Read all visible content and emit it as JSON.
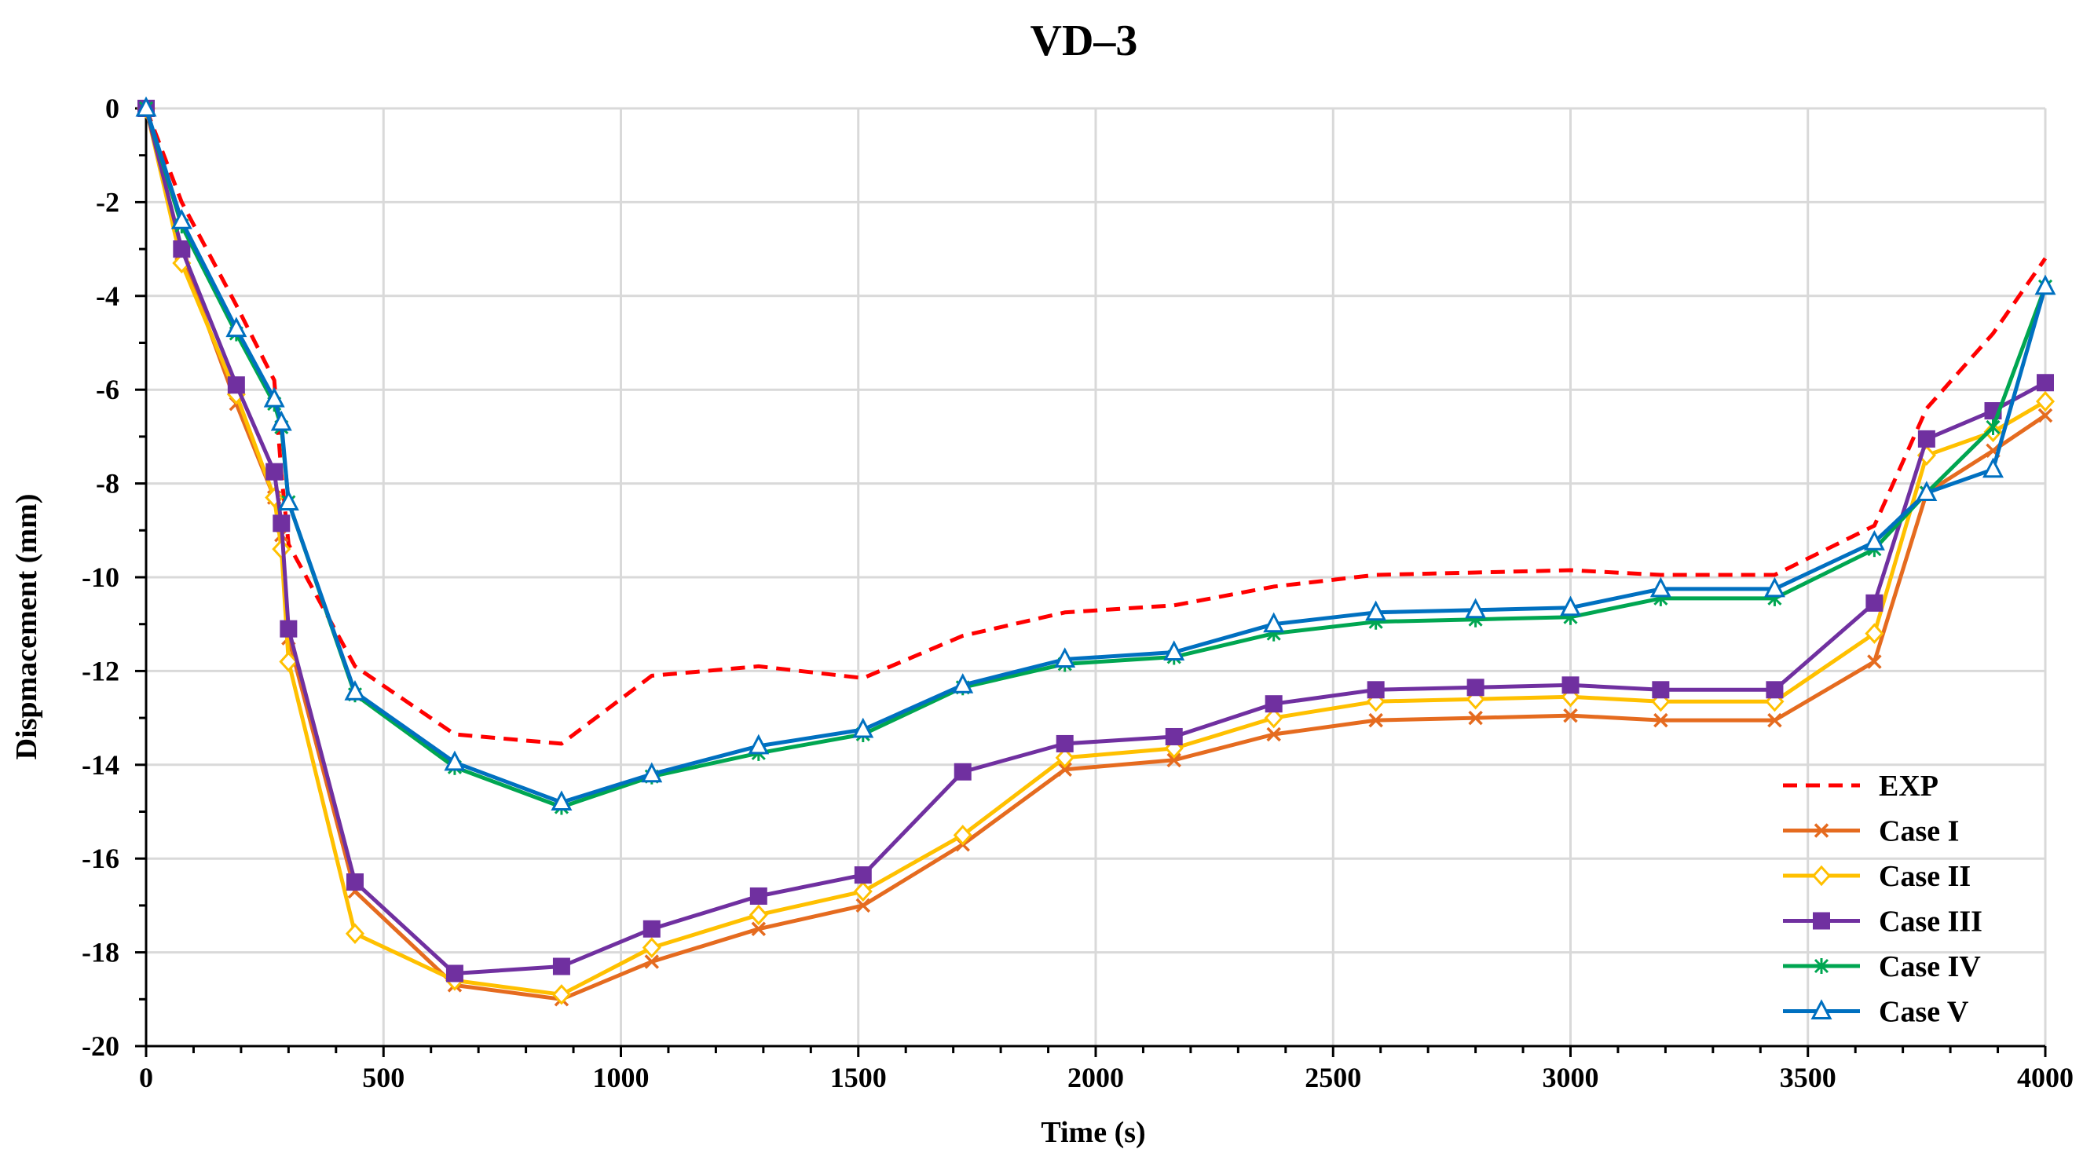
{
  "chart_data": {
    "type": "line",
    "title": "VD–3",
    "xlabel": "Time (s)",
    "ylabel": "Dispmacement (mm)",
    "xlim": [
      0,
      4000
    ],
    "ylim": [
      -20,
      0
    ],
    "xticks": [
      0,
      500,
      1000,
      1500,
      2000,
      2500,
      3000,
      3500,
      4000
    ],
    "yticks": [
      0,
      -2,
      -4,
      -6,
      -8,
      -10,
      -12,
      -14,
      -16,
      -18,
      -20
    ],
    "grid": true,
    "legend_position": "bottom-right",
    "series": [
      {
        "name": "EXP",
        "color": "#ff0000",
        "style": "dashed",
        "marker": "none",
        "x": [
          0,
          75,
          190,
          270,
          285,
          300,
          440,
          650,
          875,
          1065,
          1290,
          1510,
          1720,
          1935,
          2165,
          2375,
          2590,
          2800,
          3000,
          3190,
          3430,
          3640,
          3750,
          3890,
          4000
        ],
        "y": [
          0,
          -2.0,
          -4.2,
          -5.8,
          -7.8,
          -9.3,
          -11.9,
          -13.35,
          -13.55,
          -12.1,
          -11.9,
          -12.15,
          -11.25,
          -10.75,
          -10.6,
          -10.2,
          -9.95,
          -9.9,
          -9.85,
          -9.95,
          -9.95,
          -8.9,
          -6.4,
          -4.8,
          -3.2
        ]
      },
      {
        "name": "Case I",
        "color": "#e56b1f",
        "style": "solid",
        "marker": "x",
        "x": [
          0,
          75,
          190,
          270,
          285,
          300,
          440,
          650,
          875,
          1065,
          1290,
          1510,
          1720,
          1935,
          2165,
          2375,
          2590,
          2800,
          3000,
          3190,
          3430,
          3640,
          3750,
          3890,
          4000
        ],
        "y": [
          0,
          -3.1,
          -6.3,
          -8.3,
          -9.1,
          -11.3,
          -16.7,
          -18.7,
          -19.0,
          -18.2,
          -17.5,
          -17.0,
          -15.7,
          -14.1,
          -13.9,
          -13.35,
          -13.05,
          -13.0,
          -12.95,
          -13.05,
          -13.05,
          -11.8,
          -8.2,
          -7.3,
          -6.55
        ]
      },
      {
        "name": "Case II",
        "color": "#ffc000",
        "style": "solid",
        "marker": "diamond-open",
        "x": [
          0,
          75,
          190,
          270,
          285,
          300,
          440,
          650,
          875,
          1065,
          1290,
          1510,
          1720,
          1935,
          2165,
          2375,
          2590,
          2800,
          3000,
          3190,
          3430,
          3640,
          3750,
          3890,
          4000
        ],
        "y": [
          0,
          -3.3,
          -6.1,
          -8.3,
          -9.4,
          -11.8,
          -17.6,
          -18.6,
          -18.9,
          -17.9,
          -17.2,
          -16.7,
          -15.5,
          -13.85,
          -13.65,
          -13.0,
          -12.65,
          -12.6,
          -12.55,
          -12.65,
          -12.65,
          -11.2,
          -7.4,
          -6.9,
          -6.25
        ]
      },
      {
        "name": "Case III",
        "color": "#7030a0",
        "style": "solid",
        "marker": "square",
        "x": [
          0,
          75,
          190,
          270,
          285,
          300,
          440,
          650,
          875,
          1065,
          1290,
          1510,
          1720,
          1935,
          2165,
          2375,
          2590,
          2800,
          3000,
          3190,
          3430,
          3640,
          3750,
          3890,
          4000
        ],
        "y": [
          0,
          -3.0,
          -5.9,
          -7.75,
          -8.85,
          -11.1,
          -16.5,
          -18.45,
          -18.3,
          -17.5,
          -16.8,
          -16.35,
          -14.15,
          -13.55,
          -13.4,
          -12.7,
          -12.4,
          -12.35,
          -12.3,
          -12.4,
          -12.4,
          -10.55,
          -7.05,
          -6.45,
          -5.85
        ]
      },
      {
        "name": "Case IV",
        "color": "#00a651",
        "style": "solid",
        "marker": "asterisk",
        "x": [
          0,
          75,
          190,
          270,
          285,
          300,
          440,
          650,
          875,
          1065,
          1290,
          1510,
          1720,
          1935,
          2165,
          2375,
          2590,
          2800,
          3000,
          3190,
          3430,
          3640,
          3750,
          3890,
          4000
        ],
        "y": [
          0,
          -2.5,
          -4.8,
          -6.3,
          -6.8,
          -8.4,
          -12.5,
          -14.05,
          -14.9,
          -14.25,
          -13.75,
          -13.35,
          -12.35,
          -11.85,
          -11.7,
          -11.2,
          -10.95,
          -10.9,
          -10.85,
          -10.45,
          -10.45,
          -9.4,
          -8.2,
          -6.8,
          -3.8
        ]
      },
      {
        "name": "Case V",
        "color": "#0070c0",
        "style": "solid",
        "marker": "triangle-open",
        "x": [
          0,
          75,
          190,
          270,
          285,
          300,
          440,
          650,
          875,
          1065,
          1290,
          1510,
          1720,
          1935,
          2165,
          2375,
          2590,
          2800,
          3000,
          3190,
          3430,
          3640,
          3750,
          3890,
          4000
        ],
        "y": [
          0,
          -2.4,
          -4.7,
          -6.2,
          -6.7,
          -8.4,
          -12.45,
          -13.95,
          -14.8,
          -14.2,
          -13.6,
          -13.25,
          -12.3,
          -11.75,
          -11.6,
          -11.0,
          -10.75,
          -10.7,
          -10.65,
          -10.25,
          -10.25,
          -9.25,
          -8.2,
          -7.7,
          -3.8
        ]
      }
    ]
  }
}
